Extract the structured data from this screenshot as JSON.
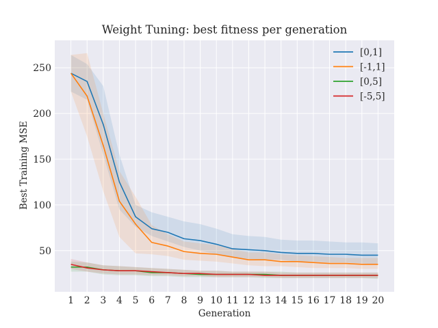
{
  "chart_data": {
    "type": "line",
    "title": "Weight Tuning: best fitness per generation",
    "xlabel": "Generation",
    "ylabel": "Best Training MSE",
    "x": [
      1,
      2,
      3,
      4,
      5,
      6,
      7,
      8,
      9,
      10,
      11,
      12,
      13,
      14,
      15,
      16,
      17,
      18,
      19,
      20
    ],
    "xlim": [
      0,
      21
    ],
    "ylim": [
      5,
      280
    ],
    "yticks": [
      50,
      100,
      150,
      200,
      250
    ],
    "grid": true,
    "legend_position": "top-right",
    "series": [
      {
        "name": "[0,1]",
        "color": "#1f77b4",
        "values": [
          244,
          235,
          188,
          125,
          87,
          74,
          70,
          63,
          61,
          57,
          52,
          51,
          50,
          48,
          47,
          47,
          46,
          46,
          45,
          45
        ],
        "lower": [
          224,
          215,
          155,
          95,
          76,
          66,
          60,
          54,
          50,
          46,
          43,
          41,
          40,
          40,
          38,
          38,
          37,
          37,
          36,
          35
        ],
        "upper": [
          264,
          254,
          230,
          155,
          100,
          92,
          87,
          82,
          79,
          74,
          68,
          66,
          65,
          62,
          61,
          61,
          60,
          59,
          59,
          58
        ]
      },
      {
        "name": "[-1,1]",
        "color": "#ff7f0e",
        "values": [
          244,
          219,
          165,
          104,
          79,
          59,
          55,
          49,
          47,
          46,
          43,
          40,
          40,
          38,
          38,
          37,
          36,
          36,
          35,
          35
        ],
        "lower": [
          224,
          175,
          115,
          65,
          47,
          46,
          44,
          40,
          39,
          38,
          36,
          34,
          33,
          33,
          32,
          31,
          31,
          31,
          30,
          30
        ],
        "upper": [
          264,
          266,
          200,
          137,
          109,
          78,
          68,
          60,
          58,
          56,
          52,
          48,
          48,
          46,
          45,
          44,
          43,
          42,
          42,
          42
        ]
      },
      {
        "name": "[0,5]",
        "color": "#2ca02c",
        "values": [
          32,
          32,
          29,
          28,
          28,
          26,
          26,
          25,
          24,
          24,
          24,
          24,
          24,
          23,
          23,
          23,
          23,
          23,
          23,
          23
        ],
        "lower": [
          27,
          27,
          24,
          23,
          23,
          22,
          22,
          21,
          21,
          21,
          21,
          21,
          20,
          20,
          20,
          20,
          20,
          20,
          20,
          19
        ],
        "upper": [
          38,
          37,
          34,
          33,
          32,
          31,
          30,
          29,
          28,
          28,
          27,
          27,
          27,
          27,
          26,
          26,
          26,
          26,
          26,
          26
        ]
      },
      {
        "name": "[-5,5]",
        "color": "#d62728",
        "values": [
          35,
          31,
          29,
          28,
          28,
          27,
          26,
          25,
          25,
          24,
          24,
          24,
          23,
          23,
          23,
          23,
          23,
          23,
          23,
          23
        ],
        "lower": [
          30,
          27,
          25,
          24,
          24,
          23,
          23,
          22,
          22,
          21,
          21,
          21,
          21,
          20,
          20,
          20,
          20,
          20,
          20,
          20
        ],
        "upper": [
          41,
          37,
          34,
          33,
          32,
          31,
          30,
          29,
          28,
          28,
          27,
          27,
          27,
          26,
          26,
          26,
          26,
          26,
          26,
          26
        ]
      }
    ]
  }
}
